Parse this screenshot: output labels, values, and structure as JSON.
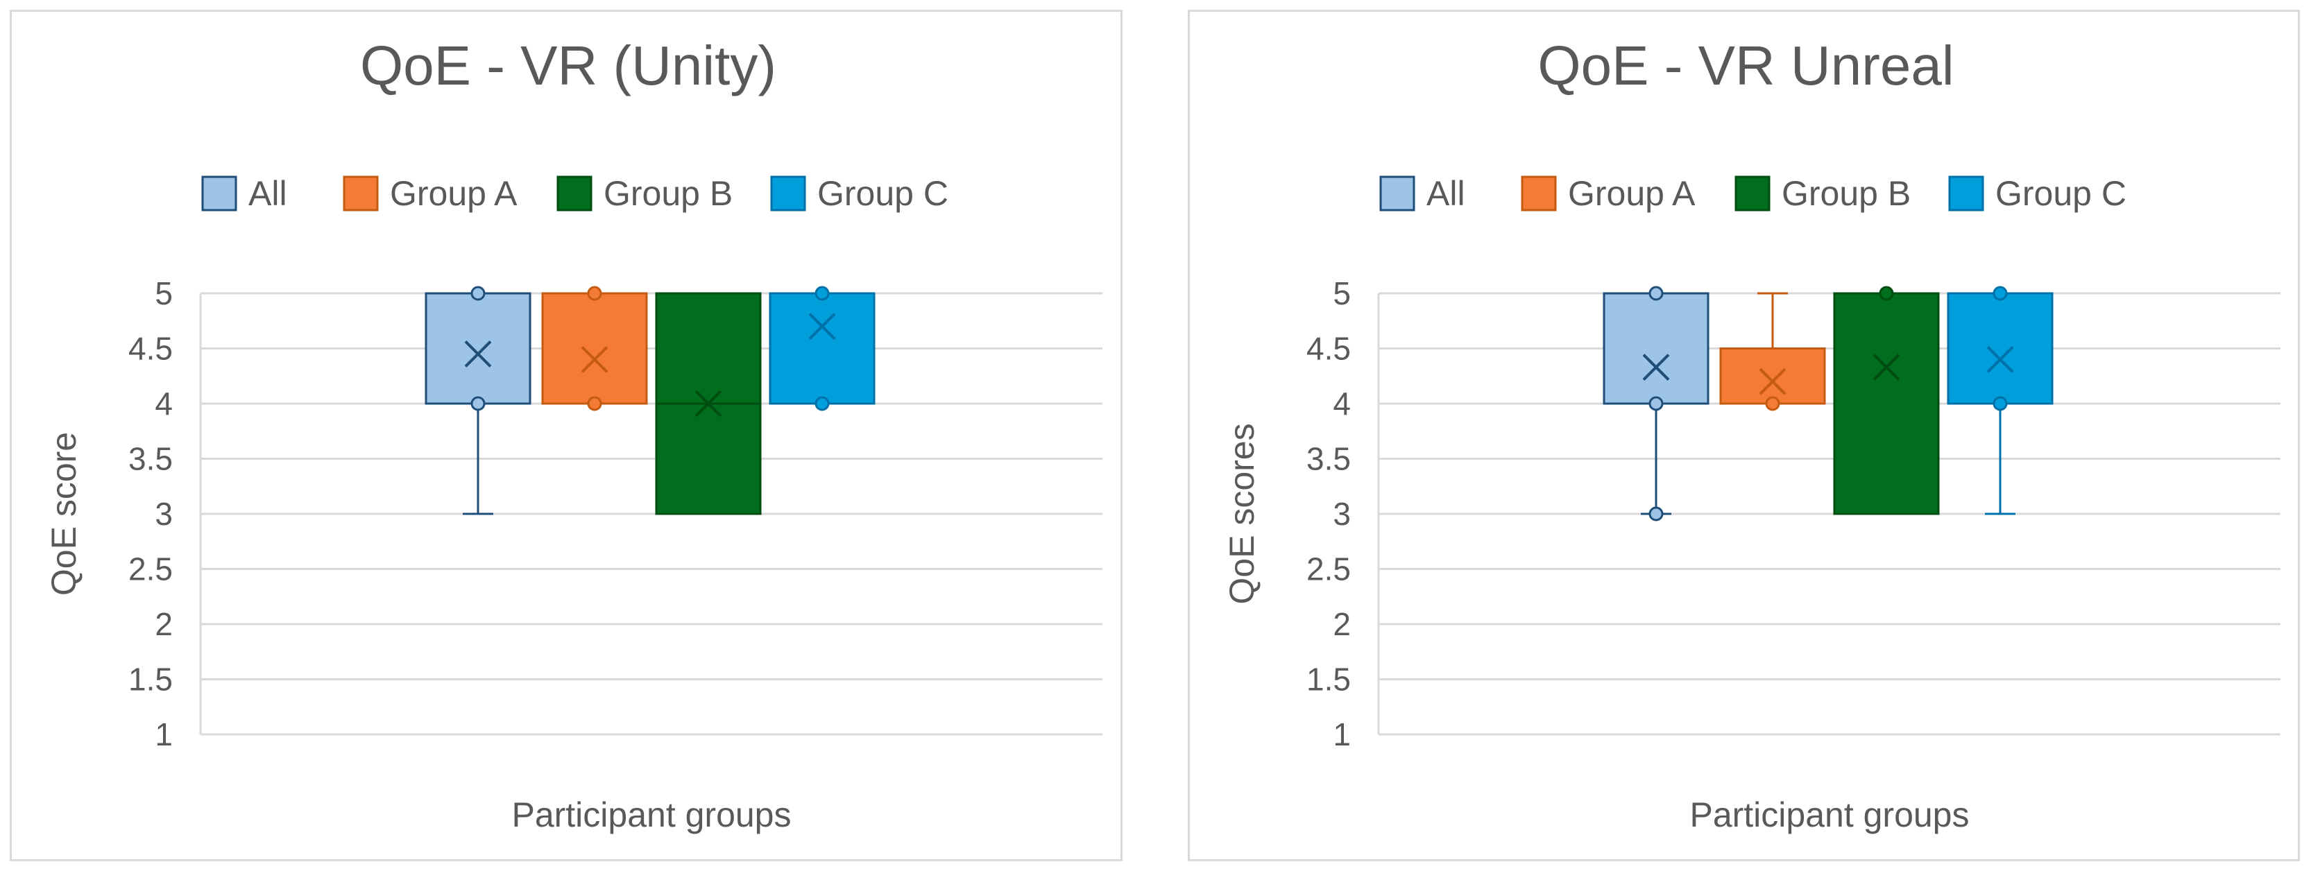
{
  "chart_data": [
    {
      "type": "boxplot",
      "title": "QoE - VR (Unity)",
      "xlabel": "Participant groups",
      "ylabel": "QoE score",
      "ylim": [
        1,
        5
      ],
      "yticks": [
        "1",
        "1.5",
        "2",
        "2.5",
        "3",
        "3.5",
        "4",
        "4.5",
        "5"
      ],
      "grid": true,
      "legend_position": "top",
      "series": [
        {
          "name": "All",
          "color": "#9DC3E6",
          "edge": "#1F4E79",
          "min": 3,
          "q1": 4,
          "median": 4,
          "q3": 5,
          "max": 5,
          "mean": 4.45,
          "points": [
            4,
            5
          ]
        },
        {
          "name": "Group A",
          "color": "#F47B35",
          "edge": "#C55A11",
          "min": 4,
          "q1": 4,
          "median": 4,
          "q3": 5,
          "max": 5,
          "mean": 4.4,
          "points": [
            4,
            5
          ]
        },
        {
          "name": "Group B",
          "color": "#006E1C",
          "edge": "#004D12",
          "min": 3,
          "q1": 3,
          "median": 4,
          "q3": 5,
          "max": 5,
          "mean": 4.0,
          "points": []
        },
        {
          "name": "Group C",
          "color": "#009FDB",
          "edge": "#0070A8",
          "min": 4,
          "q1": 4,
          "median": 4,
          "q3": 5,
          "max": 5,
          "mean": 4.7,
          "points": [
            4,
            5
          ]
        }
      ]
    },
    {
      "type": "boxplot",
      "title": "QoE - VR Unreal",
      "xlabel": "Participant groups",
      "ylabel": "QoE scores",
      "ylim": [
        1,
        5
      ],
      "yticks": [
        "1",
        "1.5",
        "2",
        "2.5",
        "3",
        "3.5",
        "4",
        "4.5",
        "5"
      ],
      "grid": true,
      "legend_position": "top",
      "series": [
        {
          "name": "All",
          "color": "#9DC3E6",
          "edge": "#1F4E79",
          "min": 3,
          "q1": 4,
          "median": 4,
          "q3": 5,
          "max": 5,
          "mean": 4.33,
          "points": [
            3,
            4,
            5
          ]
        },
        {
          "name": "Group A",
          "color": "#F47B35",
          "edge": "#C55A11",
          "min": 4,
          "q1": 4,
          "median": 4,
          "q3": 4.5,
          "max": 5,
          "mean": 4.2,
          "points": [
            4
          ]
        },
        {
          "name": "Group B",
          "color": "#006E1C",
          "edge": "#004D12",
          "min": 3,
          "q1": 3,
          "median": 5,
          "q3": 5,
          "max": 5,
          "mean": 4.33,
          "points": [
            5
          ]
        },
        {
          "name": "Group C",
          "color": "#009FDB",
          "edge": "#0070A8",
          "min": 3,
          "q1": 4,
          "median": 4,
          "q3": 5,
          "max": 5,
          "mean": 4.4,
          "points": [
            4,
            5
          ]
        }
      ]
    }
  ]
}
